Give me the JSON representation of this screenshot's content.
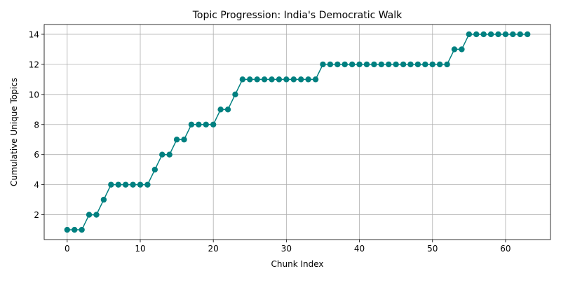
{
  "chart_data": {
    "type": "line",
    "title": "Topic Progression: India's Democratic Walk",
    "xlabel": "Chunk Index",
    "ylabel": "Cumulative Unique Topics",
    "xlim": [
      -3.15,
      66.15
    ],
    "ylim": [
      0.35,
      14.65
    ],
    "xticks": [
      0,
      10,
      20,
      30,
      40,
      50,
      60
    ],
    "yticks": [
      2,
      4,
      6,
      8,
      10,
      12,
      14
    ],
    "grid": true,
    "color": "#008080",
    "marker": "circle",
    "x": [
      0,
      1,
      2,
      3,
      4,
      5,
      6,
      7,
      8,
      9,
      10,
      11,
      12,
      13,
      14,
      15,
      16,
      17,
      18,
      19,
      20,
      21,
      22,
      23,
      24,
      25,
      26,
      27,
      28,
      29,
      30,
      31,
      32,
      33,
      34,
      35,
      36,
      37,
      38,
      39,
      40,
      41,
      42,
      43,
      44,
      45,
      46,
      47,
      48,
      49,
      50,
      51,
      52,
      53,
      54,
      55,
      56,
      57,
      58,
      59,
      60,
      61,
      62,
      63
    ],
    "values": [
      1,
      1,
      1,
      2,
      2,
      3,
      4,
      4,
      4,
      4,
      4,
      4,
      5,
      6,
      6,
      7,
      7,
      8,
      8,
      8,
      8,
      9,
      9,
      10,
      11,
      11,
      11,
      11,
      11,
      11,
      11,
      11,
      11,
      11,
      11,
      12,
      12,
      12,
      12,
      12,
      12,
      12,
      12,
      12,
      12,
      12,
      12,
      12,
      12,
      12,
      12,
      12,
      12,
      13,
      13,
      14,
      14,
      14,
      14,
      14,
      14,
      14,
      14,
      14
    ]
  }
}
